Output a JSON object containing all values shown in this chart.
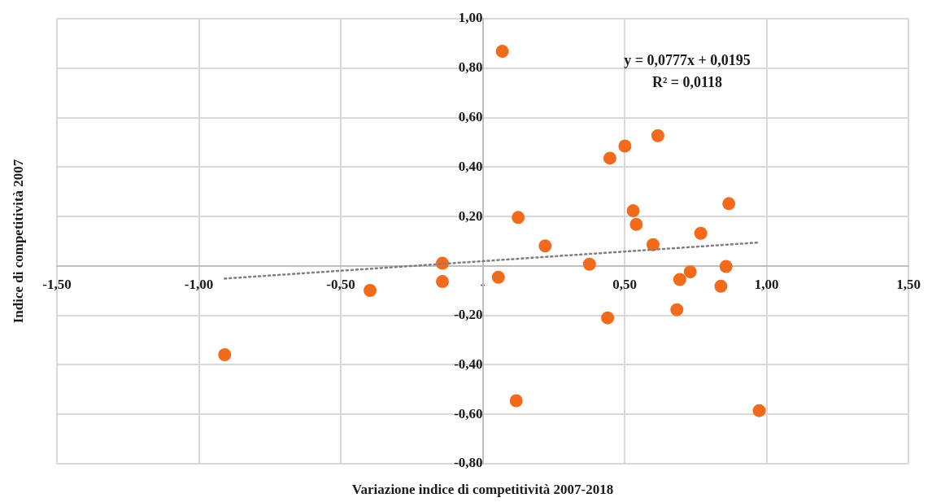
{
  "chart_data": {
    "type": "scatter",
    "xlabel": "Variazione indice di competitività 2007-2018",
    "ylabel": "Indice di competitività 2007",
    "annotations": [
      "y = 0,0777x + 0,0195",
      "R² = 0,0118"
    ],
    "xlim": [
      -1.5,
      1.5
    ],
    "ylim": [
      -0.8,
      1.0
    ],
    "xticks": [
      {
        "value": -1.5,
        "label": "-1,50"
      },
      {
        "value": -1,
        "label": "-1,00"
      },
      {
        "value": -0.5,
        "label": "-0,50"
      },
      {
        "value": 0,
        "label": "-"
      },
      {
        "value": 0.5,
        "label": "0,50"
      },
      {
        "value": 1,
        "label": "1,00"
      },
      {
        "value": 1.5,
        "label": "1,50"
      }
    ],
    "yticks": [
      {
        "value": -0.8,
        "label": "-0,80"
      },
      {
        "value": -0.6,
        "label": "-0,60"
      },
      {
        "value": -0.4,
        "label": "-0,40"
      },
      {
        "value": -0.2,
        "label": "-0,20"
      },
      {
        "value": 0,
        "label": null
      },
      {
        "value": 0.2,
        "label": "0,20"
      },
      {
        "value": 0.4,
        "label": "0,40"
      },
      {
        "value": 0.6,
        "label": "0,60"
      },
      {
        "value": 0.8,
        "label": "0,80"
      },
      {
        "value": 1,
        "label": "1,00"
      }
    ],
    "grid": true,
    "legend": false,
    "marker": "circle",
    "series": [
      {
        "color": "#f26b1d",
        "x": [
          0.069,
          0.617,
          0.501,
          0.448,
          0.867,
          0.125,
          0.53,
          0.541,
          0.768,
          0.22,
          0.6,
          -0.142,
          0.376,
          0.055,
          -0.142,
          -0.397,
          0.857,
          0.731,
          0.694,
          0.839,
          0.684,
          0.44,
          0.118,
          0.974,
          -0.909
        ],
        "values": [
          0.868,
          0.527,
          0.485,
          0.436,
          0.252,
          0.196,
          0.223,
          0.168,
          0.132,
          0.081,
          0.086,
          0.011,
          0.007,
          -0.046,
          -0.063,
          -0.099,
          -0.002,
          -0.024,
          -0.055,
          -0.082,
          -0.177,
          -0.21,
          -0.545,
          -0.585,
          -0.359
        ]
      },
      {
        "type": "line",
        "color": "#7f7f7f",
        "line_style": "dotted",
        "marker": "none",
        "x": [
          -0.909,
          0.974
        ],
        "values": [
          -0.051,
          0.095
        ]
      }
    ]
  }
}
